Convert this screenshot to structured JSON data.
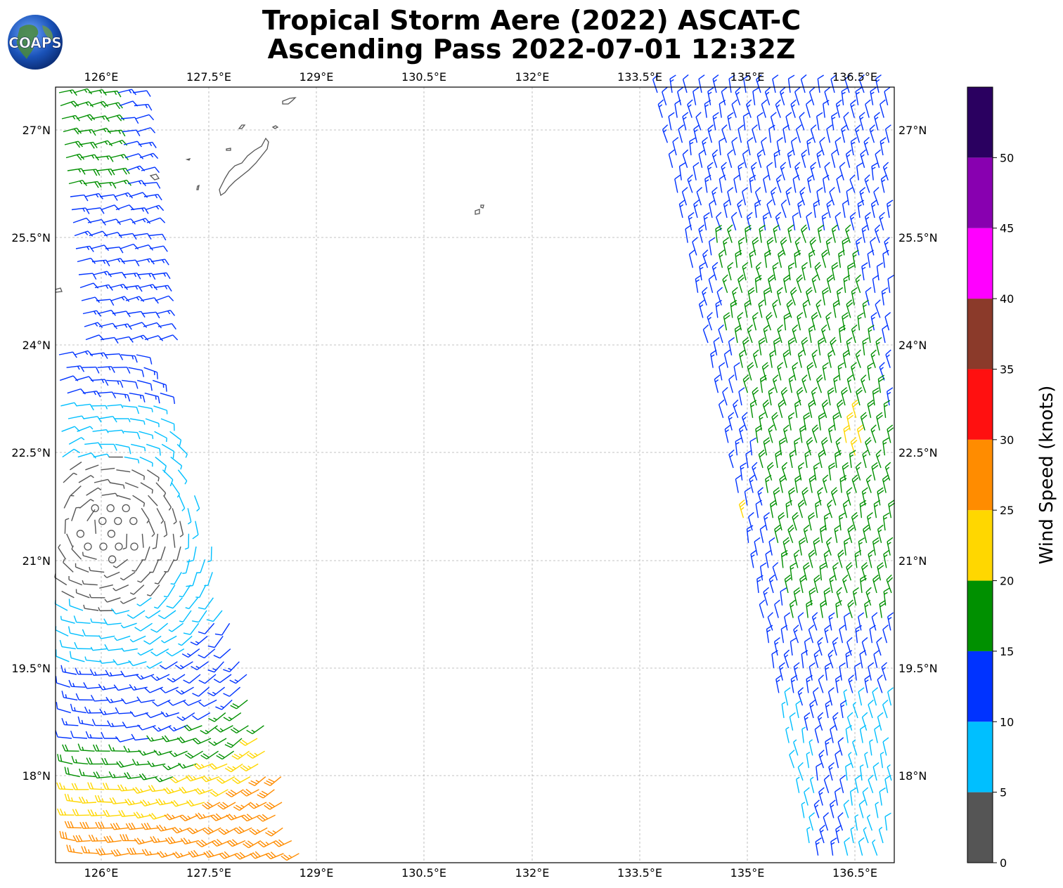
{
  "title_line1": "Tropical Storm Aere (2022) ASCAT-C",
  "title_line2": "Ascending Pass 2022-07-01 12:32Z",
  "logo_text": "COAPS",
  "lon_labels": [
    "126°E",
    "127.5°E",
    "129°E",
    "130.5°E",
    "132°E",
    "133.5°E",
    "135°E",
    "136.5°E"
  ],
  "lat_labels": [
    "27°N",
    "25.5°N",
    "24°N",
    "22.5°N",
    "21°N",
    "19.5°N",
    "18°N"
  ],
  "colorbar": {
    "title": "Wind Speed (knots)",
    "tick_labels": [
      "0",
      "5",
      "10",
      "15",
      "20",
      "25",
      "30",
      "35",
      "40",
      "45",
      "50"
    ],
    "bins": [
      {
        "range": [
          0,
          5
        ],
        "color": "#555555"
      },
      {
        "range": [
          5,
          10
        ],
        "color": "#00bfff"
      },
      {
        "range": [
          10,
          15
        ],
        "color": "#0033ff"
      },
      {
        "range": [
          15,
          20
        ],
        "color": "#009000"
      },
      {
        "range": [
          20,
          25
        ],
        "color": "#ffd700"
      },
      {
        "range": [
          25,
          30
        ],
        "color": "#ff8c00"
      },
      {
        "range": [
          30,
          35
        ],
        "color": "#ff1010"
      },
      {
        "range": [
          35,
          40
        ],
        "color": "#8b3a2a"
      },
      {
        "range": [
          40,
          45
        ],
        "color": "#ff00ff"
      },
      {
        "range": [
          45,
          50
        ],
        "color": "#8800b0"
      },
      {
        "range": [
          50,
          55
        ],
        "color": "#2a0060"
      }
    ]
  }
}
